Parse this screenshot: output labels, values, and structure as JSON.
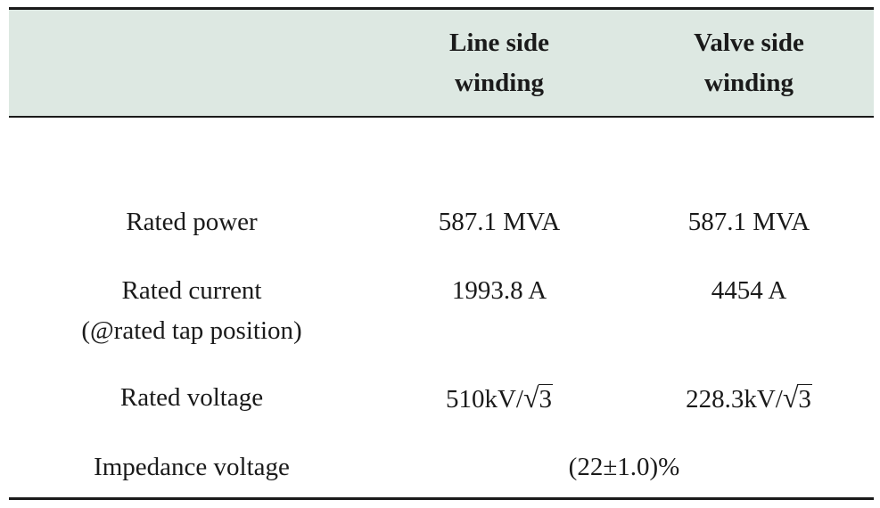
{
  "table": {
    "header": {
      "col1": "",
      "col2": "Line side\nwinding",
      "col2_line1": "Line side",
      "col2_line2": "winding",
      "col3_line1": "Valve side",
      "col3_line2": "winding"
    },
    "rows": [
      {
        "label": "Rated power",
        "line_side": "587.1 MVA",
        "valve_side": "587.1 MVA"
      },
      {
        "label_line1": "Rated current",
        "label_line2": "(@rated tap position)",
        "line_side": "1993.8 A",
        "valve_side": "4454 A"
      },
      {
        "label": "Rated voltage",
        "line_side_prefix": "510kV/",
        "line_side_sqrt_symbol": "√",
        "line_side_sqrt_arg": "3",
        "valve_side_prefix": "228.3kV/",
        "valve_side_sqrt_symbol": "√",
        "valve_side_sqrt_arg": "3"
      },
      {
        "label": "Impedance voltage",
        "merged_value": "(22±1.0)%"
      }
    ]
  }
}
